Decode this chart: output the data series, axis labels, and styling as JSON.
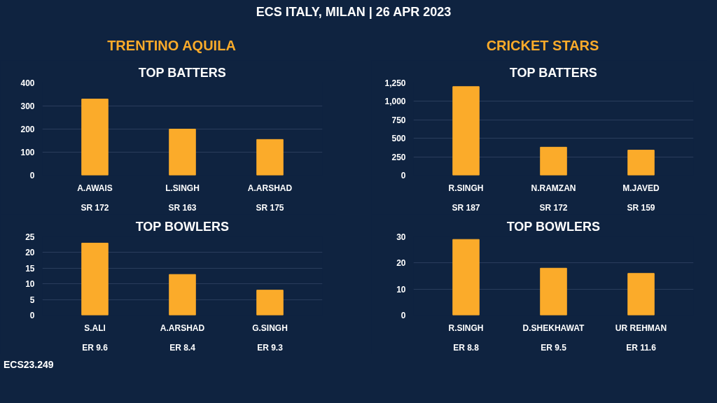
{
  "chart_data": [
    {
      "type": "bar",
      "title": "TOP BATTERS",
      "subtitle": "TRENTINO AQUILA",
      "categories": [
        "A.AWAIS",
        "L.SINGH",
        "A.ARSHAD"
      ],
      "values": [
        330,
        200,
        155
      ],
      "color": "#fbab2a",
      "ylim": [
        0,
        400
      ],
      "yticks": [
        0,
        100,
        200,
        300,
        400
      ],
      "grid": "y",
      "annotations": [
        "ECS ITALY, MILAN | 26 APR 2023",
        "ECS23.249",
        "SR 172",
        "SR 163",
        "SR 175"
      ]
    },
    {
      "type": "bar",
      "title": "TOP BATTERS",
      "subtitle": "CRICKET STARS",
      "categories": [
        "R.SINGH",
        "N.RAMZAN",
        "M.JAVED"
      ],
      "values": [
        1200,
        380,
        340
      ],
      "color": "#fbab2a",
      "ylim": [
        0,
        1250
      ],
      "yticks": [
        0,
        250,
        500,
        750,
        {
          "value": 1000,
          "label": "1,000"
        },
        {
          "value": 1250,
          "label": "1,250"
        }
      ],
      "grid": "y",
      "annotations": [
        "SR 187",
        "SR 172",
        "SR 159"
      ]
    },
    {
      "type": "bar",
      "title": "TOP BOWLERS",
      "categories": [
        "S.ALI",
        "A.ARSHAD",
        "G.SINGH"
      ],
      "values": [
        23,
        13,
        8
      ],
      "color": "#fbab2a",
      "ylim": [
        0,
        25
      ],
      "yticks": [
        0,
        5,
        10,
        15,
        20,
        25
      ],
      "grid": "y",
      "annotations": [
        "ER 9.6",
        "ER 8.4",
        "ER 9.3"
      ]
    },
    {
      "type": "bar",
      "title": "TOP BOWLERS",
      "categories": [
        "R.SINGH",
        "D.SHEKHAWAT",
        "UR REHMAN"
      ],
      "values": [
        29,
        18,
        16
      ],
      "color": "#fbab2a",
      "ylim": [
        0,
        30
      ],
      "yticks": [
        0,
        10,
        20,
        30
      ],
      "grid": "y",
      "annotations": [
        "ER 8.8",
        "ER 9.5",
        "ER 11.6"
      ]
    }
  ]
}
